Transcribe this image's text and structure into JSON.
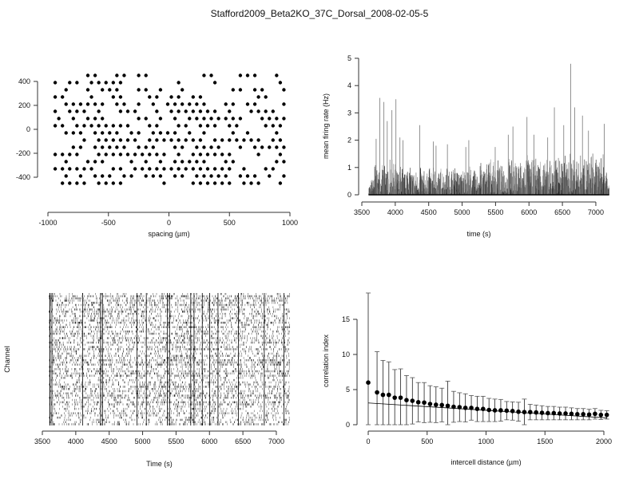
{
  "title": "Stafford2009_Beta2KO_37C_Dorsal_2008-02-05-5",
  "chart_data": [
    {
      "type": "scatter",
      "name": "electrode-layout",
      "xlabel": "spacing (µm)",
      "ylabel": "",
      "xlim": [
        -1000,
        1000
      ],
      "ylim": [
        -450,
        450
      ],
      "xticks": [
        "-1000",
        "-500",
        "0",
        "500",
        "1000"
      ],
      "xtick_values": [
        -1000,
        -500,
        0,
        500,
        1000
      ],
      "yticks": [
        "-400",
        "-200",
        "0",
        "200",
        "400"
      ],
      "ytick_values": [
        -400,
        -200,
        0,
        200,
        400
      ],
      "grid_note": "hex grid rows from 450 down to -450 step 60; columns step 60 starting -940 (odd rows offset +30); 1 = electrode present",
      "rows": [
        {
          "y": 450,
          "mask": "00001100110110000000110001110010"
        },
        {
          "y": 390,
          "mask": "10110111110000000100001000000001"
        },
        {
          "y": 330,
          "mask": "01001011100110100100000011011001"
        },
        {
          "y": 270,
          "mask": "11000100110001101101100000001100"
        },
        {
          "y": 210,
          "mask": "01111110110101011111100110110001"
        },
        {
          "y": 150,
          "mask": "10111010011100101111111010011110"
        },
        {
          "y": 90,
          "mask": "10101110000110101011111111001111"
        },
        {
          "y": 30,
          "mask": "11011111111001100110111011000111"
        },
        {
          "y": -30,
          "mask": "01110111101101111010100010100010"
        },
        {
          "y": -90,
          "mask": "00001011111101111111101111111011"
        },
        {
          "y": -150,
          "mask": "00110111110111001101111001011111"
        },
        {
          "y": -210,
          "mask": "11110011111111110101111110001001"
        },
        {
          "y": -270,
          "mask": "01001110001010101111100110000011"
        },
        {
          "y": -330,
          "mask": "11111100110111111111111110100110"
        },
        {
          "y": -390,
          "mask": "01010111011011101101111101110101"
        },
        {
          "y": -450,
          "mask": "01111011110000010001111110111001"
        }
      ]
    },
    {
      "type": "bar",
      "name": "mean-firing-rate",
      "xlabel": "time (s)",
      "ylabel": "mean firing rate (Hz)",
      "xlim": [
        3500,
        7200
      ],
      "ylim": [
        0,
        5
      ],
      "xticks": [
        "3500",
        "4000",
        "4500",
        "5000",
        "5500",
        "6000",
        "6500",
        "7000"
      ],
      "xtick_values": [
        3500,
        4000,
        4500,
        5000,
        5500,
        6000,
        6500,
        7000
      ],
      "yticks": [
        "0",
        "1",
        "2",
        "3",
        "4",
        "5"
      ],
      "ytick_values": [
        0,
        1,
        2,
        3,
        4,
        5
      ],
      "bin_start": 3600,
      "bin_width": 40,
      "envelope": [
        0.4,
        0.6,
        1.2,
        0.9,
        1.0,
        1.1,
        1.2,
        0.9,
        1.3,
        1.2,
        1.0,
        0.9,
        1.1,
        0.8,
        1.2,
        1.0,
        0.9,
        0.9,
        0.8,
        1.0,
        0.9,
        0.8,
        1.0,
        0.9,
        1.0,
        0.8,
        0.9,
        1.1,
        0.8,
        1.0,
        0.9,
        1.0,
        1.0,
        0.9,
        0.8,
        1.0,
        0.9,
        1.1,
        1.0,
        0.9,
        0.8,
        1.1,
        1.2,
        1.0,
        1.3,
        1.4,
        1.2,
        1.0,
        1.3,
        1.1,
        1.2,
        1.0,
        1.4,
        1.3,
        1.2,
        1.1,
        1.4,
        1.2,
        1.3,
        1.5,
        1.2,
        1.3,
        1.4,
        1.3,
        1.5,
        1.2,
        1.3,
        1.4,
        1.2,
        1.5,
        1.3,
        1.4,
        1.2,
        1.5,
        1.3,
        1.6,
        1.3,
        1.4,
        1.2,
        1.5,
        1.3,
        1.4,
        1.3,
        1.6,
        1.4,
        1.3,
        1.2,
        1.5,
        1.3,
        1.2
      ],
      "peaks": [
        [
          3714,
          2.05
        ],
        [
          3770,
          3.55
        ],
        [
          3830,
          3.4
        ],
        [
          3880,
          2.7
        ],
        [
          3950,
          3.1
        ],
        [
          4010,
          3.5
        ],
        [
          4070,
          2.1
        ],
        [
          4115,
          2.0
        ],
        [
          4365,
          2.55
        ],
        [
          4570,
          1.95
        ],
        [
          4610,
          1.8
        ],
        [
          4780,
          1.85
        ],
        [
          5055,
          1.75
        ],
        [
          5100,
          2.0
        ],
        [
          5495,
          1.75
        ],
        [
          5690,
          2.2
        ],
        [
          5760,
          2.5
        ],
        [
          5970,
          2.85
        ],
        [
          6075,
          2.2
        ],
        [
          6280,
          2.1
        ],
        [
          6380,
          3.2
        ],
        [
          6520,
          2.55
        ],
        [
          6625,
          4.8
        ],
        [
          6685,
          3.2
        ],
        [
          6800,
          2.9
        ],
        [
          6890,
          2.35
        ],
        [
          7125,
          2.6
        ]
      ]
    },
    {
      "type": "raster",
      "name": "spike-raster",
      "xlabel": "Time (s)",
      "ylabel": "Channel",
      "xlim": [
        3600,
        7200
      ],
      "channels": 60,
      "xticks": [
        "3500",
        "4000",
        "4500",
        "5000",
        "5500",
        "6000",
        "6500",
        "7000"
      ],
      "xtick_values": [
        3500,
        4000,
        4500,
        5000,
        5500,
        6000,
        6500,
        7000
      ]
    },
    {
      "type": "scatter",
      "name": "correlation-index",
      "xlabel": "intercell distance (µm)",
      "ylabel": "correlation index",
      "xlim": [
        0,
        2025
      ],
      "ylim": [
        0,
        18.75
      ],
      "xticks": [
        "0",
        "500",
        "1000",
        "1500",
        "2000"
      ],
      "xtick_values": [
        0,
        500,
        1000,
        1500,
        2000
      ],
      "yticks": [
        "0",
        "5",
        "10",
        "15"
      ],
      "ytick_values": [
        0,
        5,
        10,
        15
      ],
      "x": [
        0,
        75,
        125,
        175,
        225,
        275,
        325,
        375,
        425,
        475,
        525,
        575,
        625,
        675,
        725,
        775,
        825,
        875,
        925,
        975,
        1025,
        1075,
        1125,
        1175,
        1225,
        1275,
        1325,
        1375,
        1425,
        1475,
        1525,
        1575,
        1625,
        1675,
        1725,
        1775,
        1825,
        1875,
        1925,
        1975,
        2025
      ],
      "mean": [
        6.0,
        4.6,
        4.25,
        4.25,
        3.85,
        3.85,
        3.5,
        3.4,
        3.2,
        3.15,
        2.95,
        2.85,
        2.8,
        2.7,
        2.55,
        2.5,
        2.4,
        2.4,
        2.25,
        2.25,
        2.1,
        2.05,
        2.05,
        2.0,
        1.95,
        1.85,
        1.8,
        1.8,
        1.75,
        1.7,
        1.65,
        1.65,
        1.6,
        1.6,
        1.55,
        1.5,
        1.5,
        1.45,
        1.55,
        1.4,
        1.4
      ],
      "sd": [
        12.75,
        5.8,
        4.9,
        4.7,
        4.0,
        4.1,
        3.5,
        3.3,
        2.8,
        2.85,
        2.6,
        2.55,
        2.4,
        3.5,
        2.2,
        2.05,
        2.0,
        1.75,
        1.8,
        1.8,
        1.65,
        1.6,
        1.55,
        1.3,
        1.3,
        1.35,
        1.85,
        1.1,
        1.05,
        1.0,
        0.95,
        0.95,
        0.9,
        0.9,
        0.85,
        0.8,
        0.8,
        0.75,
        0.75,
        0.65,
        0.6
      ],
      "fit": {
        "intercept": 3.1,
        "slope": -0.00105
      }
    }
  ]
}
